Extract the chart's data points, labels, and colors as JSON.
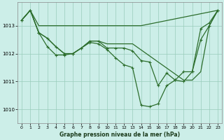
{
  "title": "Graphe pression niveau de la mer (hPa)",
  "bg_color": "#cceee8",
  "grid_color": "#99ccbb",
  "line_color": "#2d6e2d",
  "xlim": [
    -0.5,
    23.5
  ],
  "ylim": [
    1009.5,
    1013.85
  ],
  "yticks": [
    1010,
    1011,
    1012,
    1013
  ],
  "xticks": [
    0,
    1,
    2,
    3,
    4,
    5,
    6,
    7,
    8,
    9,
    10,
    11,
    12,
    13,
    14,
    15,
    16,
    17,
    18,
    19,
    20,
    21,
    22,
    23
  ],
  "series": [
    {
      "x": [
        0,
        1,
        2,
        14,
        23
      ],
      "y": [
        1013.2,
        1013.55,
        1013.0,
        1013.0,
        1013.55
      ],
      "has_markers": false
    },
    {
      "x": [
        0,
        1,
        2,
        3,
        4,
        5,
        6,
        7,
        8,
        9,
        10,
        11,
        12,
        13,
        14,
        15,
        16,
        17,
        18,
        19,
        20,
        21,
        22,
        23
      ],
      "y": [
        1013.2,
        1013.55,
        1012.75,
        1012.25,
        1011.95,
        1011.95,
        1012.0,
        1012.2,
        1012.4,
        1012.35,
        1012.15,
        1011.85,
        1011.6,
        1011.5,
        1010.15,
        1010.1,
        1010.2,
        1010.85,
        1011.05,
        1011.35,
        1011.35,
        1012.9,
        1013.1,
        1013.55
      ],
      "has_markers": true
    },
    {
      "x": [
        0,
        1,
        2,
        3,
        4,
        5,
        6,
        7,
        8,
        9,
        10,
        11,
        12,
        13,
        19,
        20,
        21,
        22,
        23
      ],
      "y": [
        1013.2,
        1013.55,
        1012.75,
        1012.55,
        1012.25,
        1012.0,
        1012.0,
        1012.2,
        1012.45,
        1012.45,
        1012.35,
        1012.35,
        1012.35,
        1012.35,
        1011.05,
        1011.05,
        1011.35,
        1013.0,
        1013.55
      ],
      "has_markers": false
    },
    {
      "x": [
        0,
        1,
        2,
        3,
        4,
        5,
        6,
        7,
        8,
        9,
        10,
        11,
        12,
        13,
        14,
        15,
        16,
        17,
        18,
        19,
        20,
        21,
        22,
        23
      ],
      "y": [
        1013.2,
        1013.55,
        1012.75,
        1012.55,
        1012.25,
        1012.0,
        1012.0,
        1012.2,
        1012.45,
        1012.45,
        1012.2,
        1012.2,
        1012.2,
        1012.1,
        1011.75,
        1011.7,
        1010.85,
        1011.3,
        1011.05,
        1011.0,
        1011.35,
        1012.5,
        1013.0,
        1013.55
      ],
      "has_markers": true
    }
  ],
  "marker": "+",
  "markersize": 3.5,
  "linewidth": 0.9
}
